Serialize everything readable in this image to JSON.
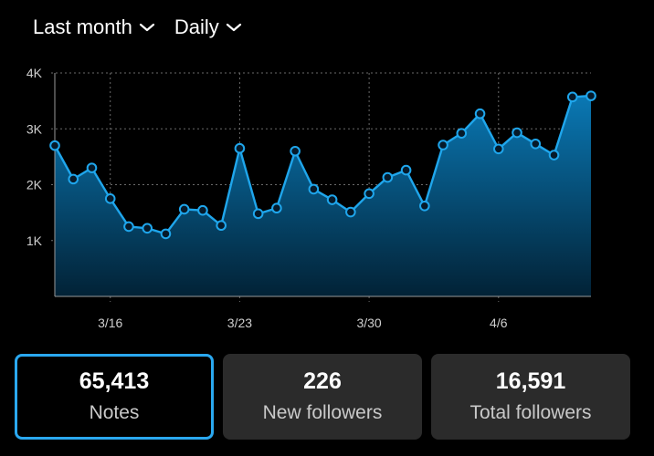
{
  "filters": {
    "period": "Last month",
    "interval": "Daily"
  },
  "colors": {
    "accent": "#2aa8f0",
    "line": "#1fa6ec",
    "card_bg": "#2b2b2b"
  },
  "chart_data": {
    "type": "area",
    "title": "",
    "xlabel": "",
    "ylabel": "",
    "y_ticks": [
      {
        "value": 1000,
        "label": "1K"
      },
      {
        "value": 2000,
        "label": "2K"
      },
      {
        "value": 3000,
        "label": "3K"
      },
      {
        "value": 4000,
        "label": "4K"
      }
    ],
    "x_ticks": [
      {
        "index": 3,
        "label": "3/16"
      },
      {
        "index": 10,
        "label": "3/23"
      },
      {
        "index": 17,
        "label": "3/30"
      },
      {
        "index": 24,
        "label": "4/6"
      }
    ],
    "ylim": [
      0,
      4000
    ],
    "grid": true,
    "series": [
      {
        "values": [
          2700,
          2100,
          2300,
          1750,
          1250,
          1220,
          1120,
          1560,
          1540,
          1270,
          2650,
          1480,
          1580,
          2600,
          1920,
          1730,
          1510,
          1840,
          2130,
          2260,
          1620,
          2710,
          2920,
          3270,
          2640,
          2930,
          2730,
          2530,
          3570,
          3590
        ]
      }
    ]
  },
  "stats": [
    {
      "value": "65,413",
      "label": "Notes",
      "selected": true
    },
    {
      "value": "226",
      "label": "New followers",
      "selected": false
    },
    {
      "value": "16,591",
      "label": "Total followers",
      "selected": false
    }
  ]
}
